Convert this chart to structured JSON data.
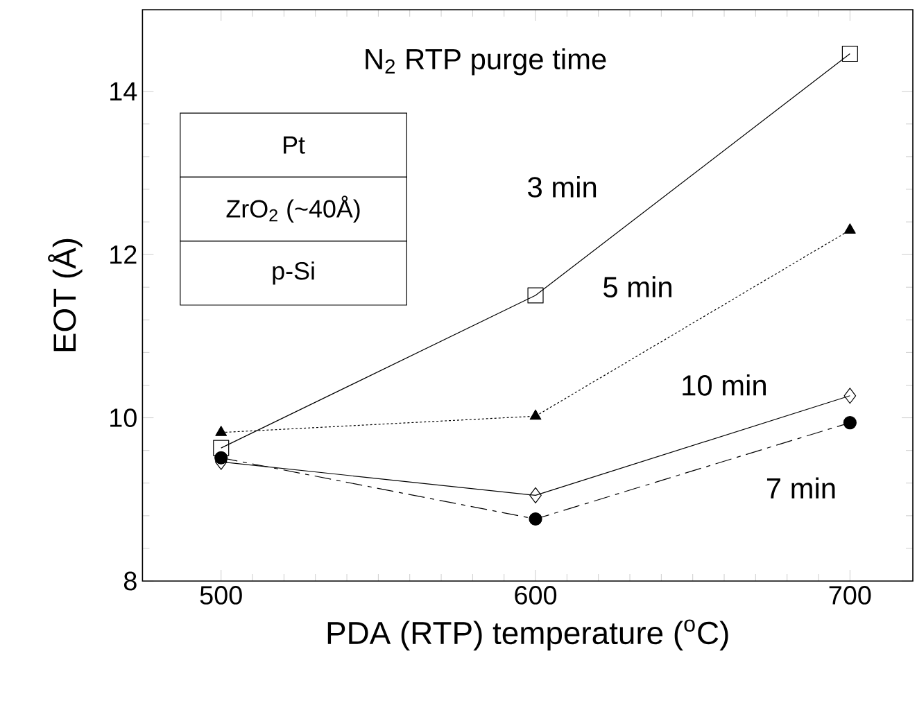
{
  "chart_data": {
    "type": "line",
    "xlabel": "PDA (RTP) temperature ($^{o}$C)",
    "ylabel": "EOT (Å)",
    "x": [
      500,
      600,
      700
    ],
    "xlim": [
      475,
      720
    ],
    "ylim": [
      8,
      15
    ],
    "xticks": [
      500,
      600,
      700
    ],
    "yticks": [
      8,
      10,
      12,
      14
    ],
    "annotations": [
      "N$_{2}$ RTP purge time",
      "Pt",
      "ZrO$_{2}$ (~40Å)",
      "p-Si"
    ],
    "series": [
      {
        "name": "3 min",
        "color": "#000000",
        "values": [
          9.63,
          11.5,
          14.46
        ],
        "marker": "square",
        "line_style": "solid"
      },
      {
        "name": "5 min",
        "color": "#000000",
        "values": [
          9.82,
          10.02,
          12.3
        ],
        "marker": "triangle",
        "line_style": "dotted"
      },
      {
        "name": "10 min",
        "color": "#000000",
        "values": [
          9.46,
          9.05,
          10.27
        ],
        "marker": "diamond",
        "line_style": "solid"
      },
      {
        "name": "7 min",
        "color": "#000000",
        "values": [
          9.51,
          8.76,
          9.94
        ],
        "marker": "circle",
        "line_style": "dashed"
      }
    ]
  }
}
